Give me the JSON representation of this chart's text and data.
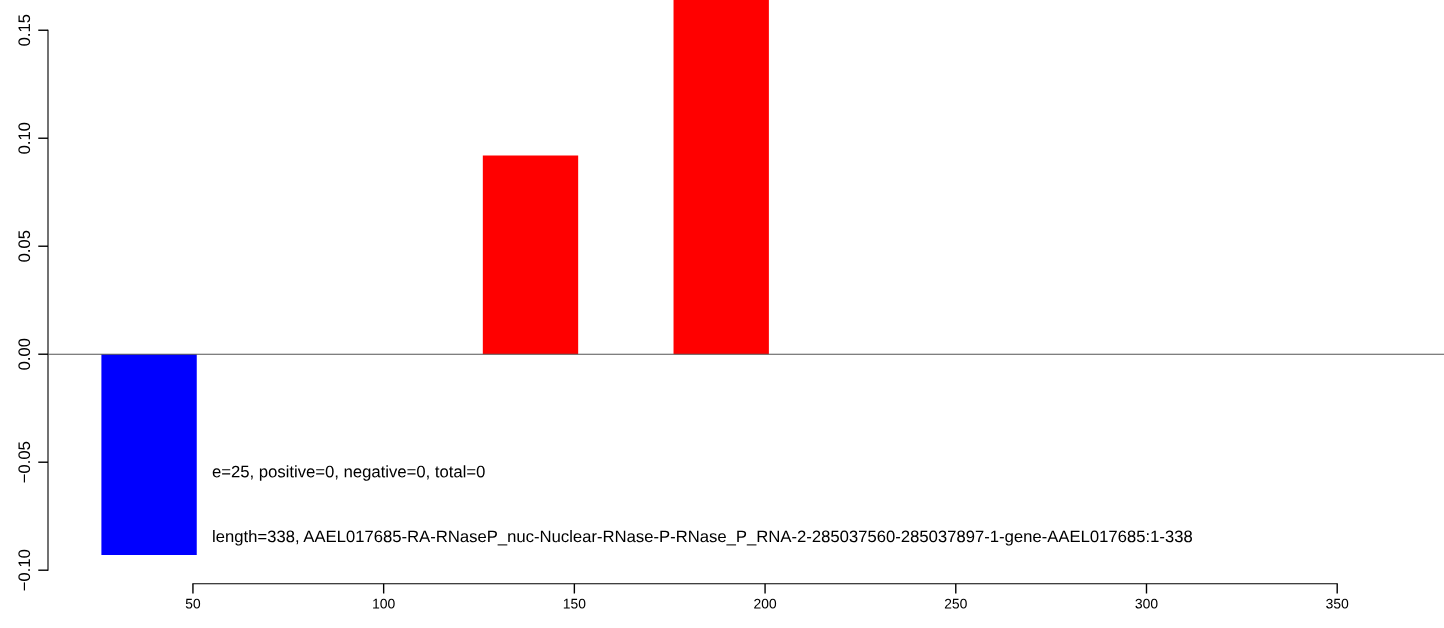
{
  "chart_data": {
    "type": "bar",
    "x": [
      38.5,
      63.5,
      88.5,
      113.5,
      138.5,
      163.5,
      188.5,
      213.5,
      238.5,
      263.5,
      288.5,
      313.5,
      338.5,
      363.5
    ],
    "values": [
      -0.093,
      0,
      0,
      0,
      0.092,
      0,
      0.164,
      0,
      0,
      0,
      0,
      0,
      0,
      0
    ],
    "colors": [
      "#0000ff",
      "#ff0000",
      "#ff0000",
      "#ff0000",
      "#ff0000",
      "#ff0000",
      "#ff0000",
      "#ff0000",
      "#ff0000",
      "#ff0000",
      "#ff0000",
      "#ff0000",
      "#ff0000",
      "#ff0000"
    ],
    "xlim": [
      12,
      378
    ],
    "ylim": [
      -0.105,
      0.164
    ],
    "xticks": [
      50,
      100,
      150,
      200,
      250,
      300,
      350
    ],
    "yticks": [
      {
        "value": -0.1,
        "label": "−0.10"
      },
      {
        "value": -0.05,
        "label": "−0.05"
      },
      {
        "value": 0,
        "label": "0.00"
      },
      {
        "value": 0.05,
        "label": "0.05"
      },
      {
        "value": 0.1,
        "label": "0.10"
      },
      {
        "value": 0.15,
        "label": "0.15"
      }
    ],
    "ref_lines": [
      {
        "axis": "y",
        "value": 0,
        "color": "#555555"
      }
    ],
    "annotations": [
      "e=25, positive=0, negative=0, total=0",
      "length=338, AAEL017685-RA-RNaseP_nuc-Nuclear-RNase-P-RNase_P_RNA-2-285037560-285037897-1-gene-AAEL017685:1-338"
    ],
    "grid": false,
    "legend": false
  }
}
